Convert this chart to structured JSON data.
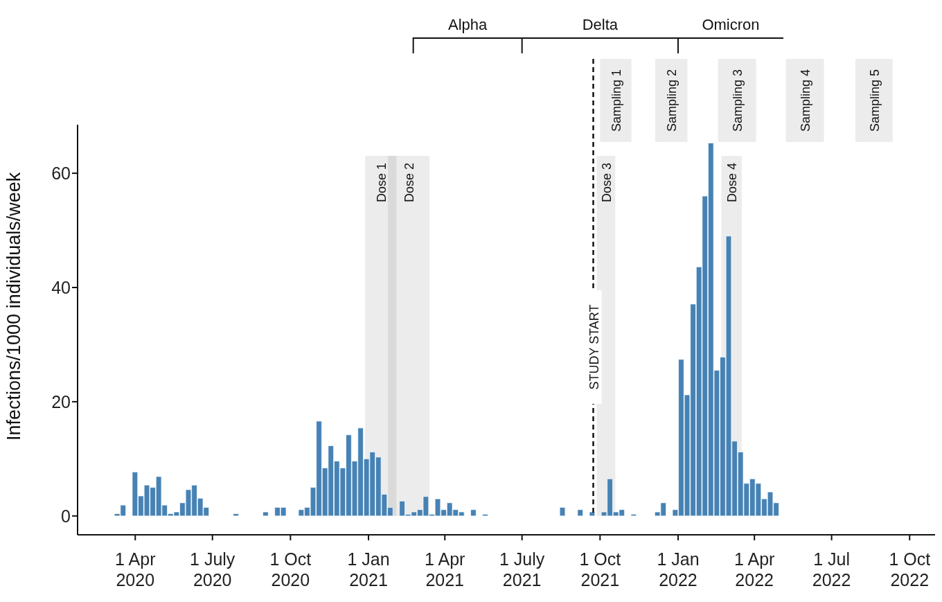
{
  "chart_data": {
    "type": "bar",
    "ylabel": "Infections/1000 individuals/week",
    "color": "#4682b4",
    "x": [
      "2020-03-11",
      "2020-03-18",
      "2020-04-01",
      "2020-04-08",
      "2020-04-15",
      "2020-04-22",
      "2020-04-29",
      "2020-05-06",
      "2020-05-13",
      "2020-05-20",
      "2020-05-27",
      "2020-06-03",
      "2020-06-10",
      "2020-06-17",
      "2020-06-24",
      "2020-07-29",
      "2020-09-02",
      "2020-09-16",
      "2020-09-23",
      "2020-10-14",
      "2020-10-21",
      "2020-10-28",
      "2020-11-04",
      "2020-11-11",
      "2020-11-18",
      "2020-11-25",
      "2020-12-02",
      "2020-12-09",
      "2020-12-16",
      "2020-12-23",
      "2020-12-30",
      "2021-01-06",
      "2021-01-13",
      "2021-01-20",
      "2021-01-27",
      "2021-02-10",
      "2021-02-17",
      "2021-02-24",
      "2021-03-03",
      "2021-03-10",
      "2021-03-17",
      "2021-03-24",
      "2021-03-31",
      "2021-04-07",
      "2021-04-14",
      "2021-04-21",
      "2021-05-05",
      "2021-05-19",
      "2021-08-18",
      "2021-09-08",
      "2021-09-22",
      "2021-10-06",
      "2021-10-13",
      "2021-10-20",
      "2021-10-27",
      "2021-11-10",
      "2021-12-08",
      "2021-12-15",
      "2021-12-29",
      "2022-01-05",
      "2022-01-12",
      "2022-01-19",
      "2022-01-26",
      "2022-02-02",
      "2022-02-09",
      "2022-02-16",
      "2022-02-23",
      "2022-03-02",
      "2022-03-09",
      "2022-03-16",
      "2022-03-23",
      "2022-03-30",
      "2022-04-06",
      "2022-04-13",
      "2022-04-20",
      "2022-04-27"
    ],
    "values": [
      0.4,
      1.9,
      7.7,
      3.5,
      5.4,
      5.0,
      6.9,
      1.9,
      0.4,
      0.7,
      2.3,
      4.6,
      5.4,
      3.1,
      1.5,
      0.4,
      0.7,
      1.5,
      1.5,
      1.1,
      1.5,
      5.0,
      16.6,
      8.4,
      12.3,
      9.6,
      8.4,
      14.2,
      9.6,
      15.4,
      10.0,
      11.2,
      10.3,
      3.8,
      1.5,
      2.6,
      0.3,
      0.7,
      1.1,
      3.4,
      0.3,
      3.0,
      1.1,
      2.3,
      1.1,
      0.7,
      1.1,
      0.3,
      1.5,
      1.1,
      0.7,
      0.7,
      6.5,
      0.7,
      1.1,
      0.3,
      0.7,
      2.3,
      1.1,
      27.4,
      21.2,
      37.1,
      43.6,
      56.0,
      65.3,
      25.5,
      27.8,
      49.0,
      13.1,
      11.2,
      5.7,
      6.5,
      5.7,
      3.0,
      4.2,
      2.3
    ],
    "xlim": [
      "2020-01-24",
      "2022-10-31"
    ],
    "ylim": [
      -3.3,
      68.5
    ],
    "xticks": [
      {
        "value": "2020-04-01",
        "label": "1 Apr 2020"
      },
      {
        "value": "2020-07-01",
        "label": "1 July 2020"
      },
      {
        "value": "2020-10-01",
        "label": "1 Oct 2020"
      },
      {
        "value": "2021-01-01",
        "label": "1 Jan 2021"
      },
      {
        "value": "2021-04-01",
        "label": "1 Apr 2021"
      },
      {
        "value": "2021-07-01",
        "label": "1 July 2021"
      },
      {
        "value": "2021-10-01",
        "label": "1 Oct 2021"
      },
      {
        "value": "2022-01-01",
        "label": "1 Jan 2022"
      },
      {
        "value": "2022-04-01",
        "label": "1 Apr 2022"
      },
      {
        "value": "2022-07-01",
        "label": "1 Jul 2022"
      },
      {
        "value": "2022-10-01",
        "label": "1 Oct 2022"
      }
    ],
    "yticks": [
      0,
      20,
      40,
      60
    ],
    "bands": [
      {
        "axis": "x",
        "from": "2020-12-28",
        "to": "2021-02-03",
        "label": "Dose 1",
        "color": "#ececec"
      },
      {
        "axis": "x",
        "from": "2021-01-24",
        "to": "2021-03-14",
        "label": "Dose 2",
        "color": "#ececec"
      },
      {
        "axis": "x",
        "from": "2021-09-27",
        "to": "2021-10-19",
        "label": "Dose 3",
        "color": "#ececec"
      },
      {
        "axis": "x",
        "from": "2022-02-21",
        "to": "2022-03-17",
        "label": "Dose 4",
        "color": "#ececec"
      },
      {
        "axis": "x",
        "from": "2021-10-01",
        "to": "2021-11-07",
        "label": "Sampling 1",
        "color": "#ececec"
      },
      {
        "axis": "x",
        "from": "2021-12-05",
        "to": "2022-01-12",
        "label": "Sampling 2",
        "color": "#ececec"
      },
      {
        "axis": "x",
        "from": "2022-02-17",
        "to": "2022-04-03",
        "label": "Sampling 3",
        "color": "#ececec"
      },
      {
        "axis": "x",
        "from": "2022-05-08",
        "to": "2022-06-22",
        "label": "Sampling 4",
        "color": "#ececec"
      },
      {
        "axis": "x",
        "from": "2022-07-29",
        "to": "2022-09-11",
        "label": "Sampling 5",
        "color": "#ececec"
      }
    ],
    "annotations": [
      "Alpha",
      "Delta",
      "Omicron"
    ],
    "ref_lines": [
      {
        "axis": "x",
        "value": "2021-09-23",
        "label": "STUDY START",
        "line_style": "dashed"
      }
    ]
  }
}
